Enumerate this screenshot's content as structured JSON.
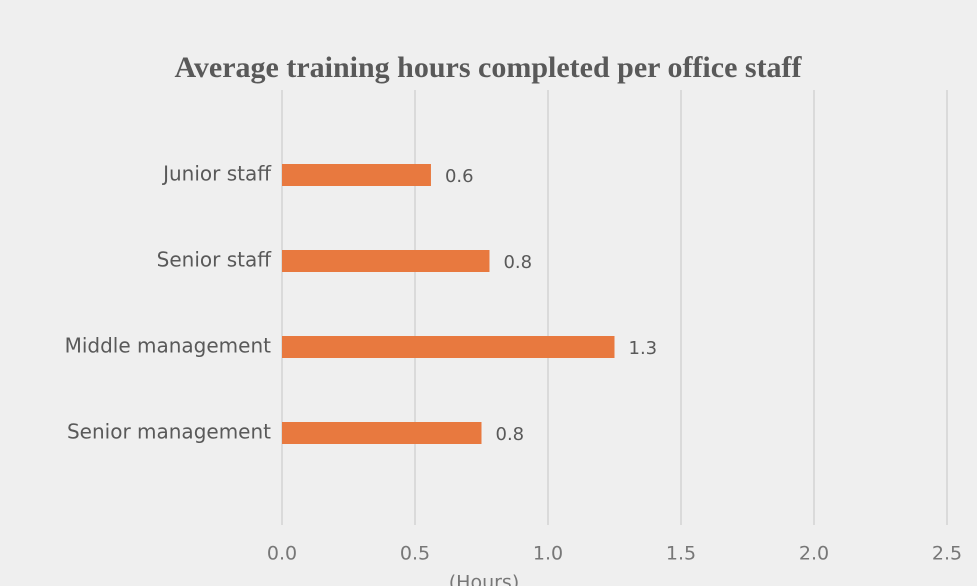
{
  "chart_data": {
    "type": "bar",
    "orientation": "horizontal",
    "title": "Average training hours completed per office staff",
    "x_label": "(Hours)",
    "categories": [
      "Junior staff",
      "Senior staff",
      "Middle management",
      "Senior management"
    ],
    "values": [
      0.56,
      0.78,
      1.25,
      0.75
    ],
    "value_labels": [
      "0.6",
      "0.8",
      "1.3",
      "0.8"
    ],
    "color": "#e8793f",
    "xlim": [
      0,
      2.5
    ],
    "xticks": [
      {
        "value": 0,
        "label": "0.0"
      },
      {
        "value": 0.5,
        "label": "0.5"
      },
      {
        "value": 1,
        "label": "1.0"
      },
      {
        "value": 1.5,
        "label": "1.5"
      },
      {
        "value": 2,
        "label": "2.0"
      },
      {
        "value": 2.5,
        "label": "2.5"
      }
    ],
    "grid": true
  }
}
